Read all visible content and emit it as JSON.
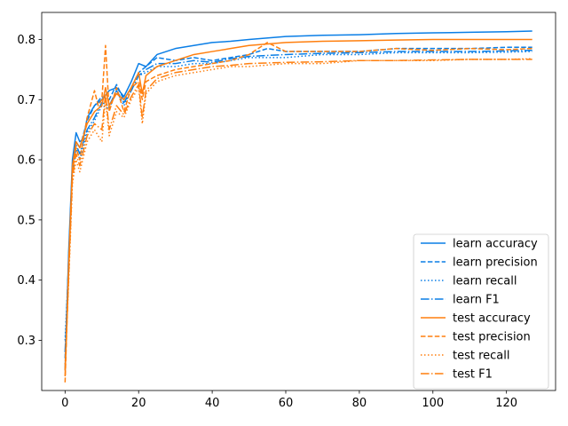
{
  "chart_data": {
    "type": "line",
    "title": "",
    "xlabel": "",
    "ylabel": "",
    "xlim": [
      -6.35,
      133.35
    ],
    "ylim": [
      0.2165,
      0.845
    ],
    "xticks": [
      0,
      20,
      40,
      60,
      80,
      100,
      120
    ],
    "yticks": [
      0.3,
      0.4,
      0.5,
      0.6,
      0.7,
      0.8
    ],
    "grid": false,
    "legend": "bottom-right",
    "colors": {
      "learn": "#0a7ee6",
      "test": "#ff7f0e"
    },
    "series": [
      {
        "name": "learn accuracy",
        "color": "#0a7ee6",
        "style": "solid",
        "points": [
          [
            0,
            0.25
          ],
          [
            1,
            0.45
          ],
          [
            2,
            0.6
          ],
          [
            3,
            0.645
          ],
          [
            4,
            0.63
          ],
          [
            5,
            0.635
          ],
          [
            6,
            0.67
          ],
          [
            8,
            0.69
          ],
          [
            10,
            0.7
          ],
          [
            12,
            0.715
          ],
          [
            14,
            0.72
          ],
          [
            16,
            0.705
          ],
          [
            18,
            0.73
          ],
          [
            20,
            0.76
          ],
          [
            22,
            0.755
          ],
          [
            25,
            0.775
          ],
          [
            30,
            0.785
          ],
          [
            35,
            0.79
          ],
          [
            40,
            0.795
          ],
          [
            45,
            0.797
          ],
          [
            50,
            0.8
          ],
          [
            60,
            0.805
          ],
          [
            70,
            0.807
          ],
          [
            80,
            0.808
          ],
          [
            90,
            0.81
          ],
          [
            100,
            0.811
          ],
          [
            110,
            0.812
          ],
          [
            120,
            0.813
          ],
          [
            127,
            0.814
          ]
        ]
      },
      {
        "name": "learn precision",
        "color": "#0a7ee6",
        "style": "dashed",
        "points": [
          [
            0,
            0.27
          ],
          [
            1,
            0.44
          ],
          [
            2,
            0.59
          ],
          [
            3,
            0.63
          ],
          [
            4,
            0.62
          ],
          [
            6,
            0.665
          ],
          [
            8,
            0.69
          ],
          [
            10,
            0.705
          ],
          [
            12,
            0.7
          ],
          [
            14,
            0.725
          ],
          [
            16,
            0.7
          ],
          [
            18,
            0.72
          ],
          [
            20,
            0.745
          ],
          [
            22,
            0.755
          ],
          [
            25,
            0.77
          ],
          [
            30,
            0.765
          ],
          [
            35,
            0.77
          ],
          [
            40,
            0.765
          ],
          [
            45,
            0.77
          ],
          [
            50,
            0.775
          ],
          [
            55,
            0.785
          ],
          [
            60,
            0.78
          ],
          [
            70,
            0.78
          ],
          [
            80,
            0.78
          ],
          [
            90,
            0.785
          ],
          [
            100,
            0.785
          ],
          [
            110,
            0.785
          ],
          [
            120,
            0.787
          ],
          [
            127,
            0.787
          ]
        ]
      },
      {
        "name": "learn recall",
        "color": "#0a7ee6",
        "style": "dotted",
        "points": [
          [
            0,
            0.3
          ],
          [
            1,
            0.43
          ],
          [
            2,
            0.58
          ],
          [
            3,
            0.62
          ],
          [
            4,
            0.6
          ],
          [
            6,
            0.645
          ],
          [
            8,
            0.665
          ],
          [
            10,
            0.69
          ],
          [
            12,
            0.685
          ],
          [
            14,
            0.715
          ],
          [
            16,
            0.69
          ],
          [
            18,
            0.715
          ],
          [
            20,
            0.74
          ],
          [
            22,
            0.745
          ],
          [
            25,
            0.755
          ],
          [
            30,
            0.755
          ],
          [
            35,
            0.76
          ],
          [
            40,
            0.76
          ],
          [
            45,
            0.765
          ],
          [
            50,
            0.77
          ],
          [
            60,
            0.77
          ],
          [
            70,
            0.775
          ],
          [
            80,
            0.775
          ],
          [
            90,
            0.778
          ],
          [
            100,
            0.778
          ],
          [
            110,
            0.778
          ],
          [
            120,
            0.779
          ],
          [
            127,
            0.78
          ]
        ]
      },
      {
        "name": "learn F1",
        "color": "#0a7ee6",
        "style": "dashdot",
        "points": [
          [
            0,
            0.28
          ],
          [
            1,
            0.43
          ],
          [
            2,
            0.585
          ],
          [
            3,
            0.625
          ],
          [
            4,
            0.61
          ],
          [
            6,
            0.65
          ],
          [
            8,
            0.67
          ],
          [
            10,
            0.695
          ],
          [
            12,
            0.69
          ],
          [
            14,
            0.715
          ],
          [
            16,
            0.695
          ],
          [
            18,
            0.715
          ],
          [
            20,
            0.74
          ],
          [
            22,
            0.75
          ],
          [
            25,
            0.76
          ],
          [
            30,
            0.76
          ],
          [
            35,
            0.765
          ],
          [
            40,
            0.762
          ],
          [
            45,
            0.768
          ],
          [
            50,
            0.772
          ],
          [
            60,
            0.775
          ],
          [
            70,
            0.777
          ],
          [
            80,
            0.778
          ],
          [
            90,
            0.78
          ],
          [
            100,
            0.78
          ],
          [
            110,
            0.78
          ],
          [
            120,
            0.781
          ],
          [
            127,
            0.782
          ]
        ]
      },
      {
        "name": "test accuracy",
        "color": "#ff7f0e",
        "style": "solid",
        "points": [
          [
            0,
            0.24
          ],
          [
            1,
            0.43
          ],
          [
            2,
            0.59
          ],
          [
            3,
            0.63
          ],
          [
            4,
            0.62
          ],
          [
            6,
            0.66
          ],
          [
            8,
            0.68
          ],
          [
            10,
            0.69
          ],
          [
            11,
            0.72
          ],
          [
            12,
            0.69
          ],
          [
            14,
            0.71
          ],
          [
            16,
            0.7
          ],
          [
            18,
            0.72
          ],
          [
            20,
            0.745
          ],
          [
            21,
            0.71
          ],
          [
            22,
            0.74
          ],
          [
            25,
            0.755
          ],
          [
            30,
            0.765
          ],
          [
            35,
            0.775
          ],
          [
            40,
            0.78
          ],
          [
            45,
            0.785
          ],
          [
            50,
            0.79
          ],
          [
            60,
            0.795
          ],
          [
            70,
            0.797
          ],
          [
            80,
            0.798
          ],
          [
            90,
            0.799
          ],
          [
            100,
            0.8
          ],
          [
            110,
            0.8
          ],
          [
            120,
            0.8
          ],
          [
            127,
            0.8
          ]
        ]
      },
      {
        "name": "test precision",
        "color": "#ff7f0e",
        "style": "dashed",
        "points": [
          [
            0,
            0.23
          ],
          [
            1,
            0.42
          ],
          [
            2,
            0.58
          ],
          [
            3,
            0.62
          ],
          [
            4,
            0.6
          ],
          [
            6,
            0.67
          ],
          [
            8,
            0.715
          ],
          [
            9,
            0.69
          ],
          [
            10,
            0.7
          ],
          [
            11,
            0.79
          ],
          [
            12,
            0.68
          ],
          [
            14,
            0.72
          ],
          [
            16,
            0.68
          ],
          [
            18,
            0.72
          ],
          [
            20,
            0.73
          ],
          [
            21,
            0.7
          ],
          [
            22,
            0.73
          ],
          [
            25,
            0.74
          ],
          [
            30,
            0.75
          ],
          [
            35,
            0.755
          ],
          [
            40,
            0.76
          ],
          [
            45,
            0.765
          ],
          [
            50,
            0.775
          ],
          [
            55,
            0.795
          ],
          [
            60,
            0.78
          ],
          [
            70,
            0.78
          ],
          [
            80,
            0.78
          ],
          [
            90,
            0.785
          ],
          [
            100,
            0.782
          ],
          [
            110,
            0.785
          ],
          [
            120,
            0.783
          ],
          [
            127,
            0.785
          ]
        ]
      },
      {
        "name": "test recall",
        "color": "#ff7f0e",
        "style": "dotted",
        "points": [
          [
            0,
            0.26
          ],
          [
            1,
            0.4
          ],
          [
            2,
            0.56
          ],
          [
            3,
            0.6
          ],
          [
            4,
            0.58
          ],
          [
            6,
            0.63
          ],
          [
            8,
            0.65
          ],
          [
            10,
            0.63
          ],
          [
            11,
            0.7
          ],
          [
            12,
            0.64
          ],
          [
            14,
            0.68
          ],
          [
            16,
            0.67
          ],
          [
            18,
            0.7
          ],
          [
            20,
            0.72
          ],
          [
            21,
            0.66
          ],
          [
            22,
            0.71
          ],
          [
            25,
            0.73
          ],
          [
            30,
            0.74
          ],
          [
            35,
            0.745
          ],
          [
            40,
            0.75
          ],
          [
            45,
            0.755
          ],
          [
            50,
            0.755
          ],
          [
            60,
            0.76
          ],
          [
            70,
            0.76
          ],
          [
            80,
            0.765
          ],
          [
            90,
            0.765
          ],
          [
            100,
            0.765
          ],
          [
            110,
            0.767
          ],
          [
            120,
            0.767
          ],
          [
            127,
            0.768
          ]
        ]
      },
      {
        "name": "test F1",
        "color": "#ff7f0e",
        "style": "dashdot",
        "points": [
          [
            0,
            0.25
          ],
          [
            1,
            0.41
          ],
          [
            2,
            0.57
          ],
          [
            3,
            0.61
          ],
          [
            4,
            0.59
          ],
          [
            6,
            0.64
          ],
          [
            8,
            0.66
          ],
          [
            10,
            0.65
          ],
          [
            11,
            0.71
          ],
          [
            12,
            0.65
          ],
          [
            14,
            0.69
          ],
          [
            16,
            0.675
          ],
          [
            18,
            0.705
          ],
          [
            20,
            0.725
          ],
          [
            21,
            0.67
          ],
          [
            22,
            0.715
          ],
          [
            25,
            0.735
          ],
          [
            30,
            0.745
          ],
          [
            35,
            0.75
          ],
          [
            40,
            0.755
          ],
          [
            45,
            0.757
          ],
          [
            50,
            0.76
          ],
          [
            60,
            0.762
          ],
          [
            70,
            0.763
          ],
          [
            80,
            0.765
          ],
          [
            90,
            0.765
          ],
          [
            100,
            0.766
          ],
          [
            110,
            0.767
          ],
          [
            120,
            0.767
          ],
          [
            127,
            0.767
          ]
        ]
      }
    ]
  }
}
